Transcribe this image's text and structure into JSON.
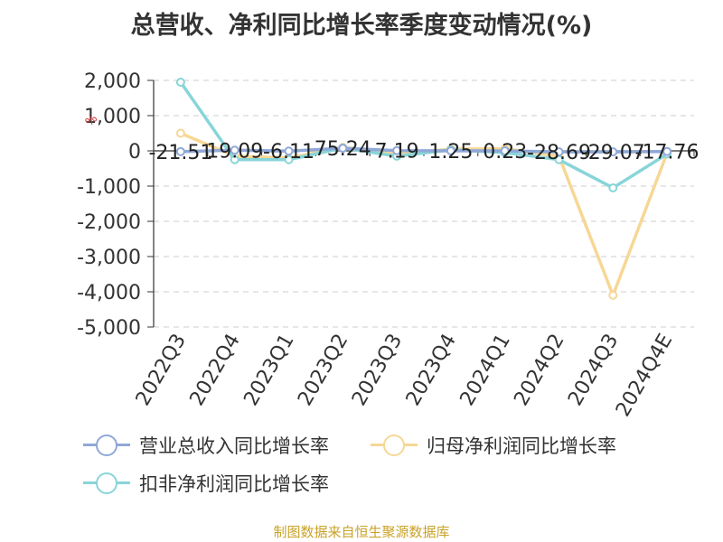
{
  "title": "总营收、净利同比增长率季度变动情况(%)",
  "footer": "制图数据来自恒生聚源数据库",
  "chart_data": {
    "type": "line",
    "title": "总营收、净利同比增长率季度变动情况(%)",
    "categories": [
      "2022Q3",
      "2022Q4",
      "2023Q1",
      "2023Q2",
      "2023Q3",
      "2023Q4",
      "2024Q1",
      "2024Q2",
      "2024Q3",
      "2024Q4E"
    ],
    "ylim": [
      -5000,
      2000
    ],
    "yticks": [
      2000,
      1000,
      0,
      -1000,
      -2000,
      -3000,
      -4000,
      -5000
    ],
    "ytick_labels": [
      "2,000",
      "1,000",
      "0",
      "-1,000",
      "-2,000",
      "-3,000",
      "-4,000",
      "-5,000"
    ],
    "grid": true,
    "legend_position": "bottom",
    "series": [
      {
        "name": "营业总收入同比增长率",
        "color": "#8fa8d8",
        "values": [
          -21.51,
          19.09,
          -6.11,
          75.24,
          7.19,
          1.25,
          0.23,
          -28.69,
          -29.07,
          -17.76
        ],
        "labels": [
          "-21.51",
          "19.09",
          "-6.11",
          "75.24",
          "7.19",
          "1.25",
          "0.23",
          "-28.69",
          "-29.07",
          "-17.76"
        ]
      },
      {
        "name": "归母净利润同比增长率",
        "color": "#f7d796",
        "values": [
          500,
          -150,
          -200,
          100,
          -100,
          50,
          60,
          -150,
          -4100,
          -60
        ]
      },
      {
        "name": "扣非净利润同比增长率",
        "color": "#88d5d9",
        "values": [
          1950,
          -250,
          -250,
          80,
          -150,
          30,
          -50,
          -250,
          -1050,
          -90
        ]
      }
    ],
    "ylabel_marker": "%"
  }
}
